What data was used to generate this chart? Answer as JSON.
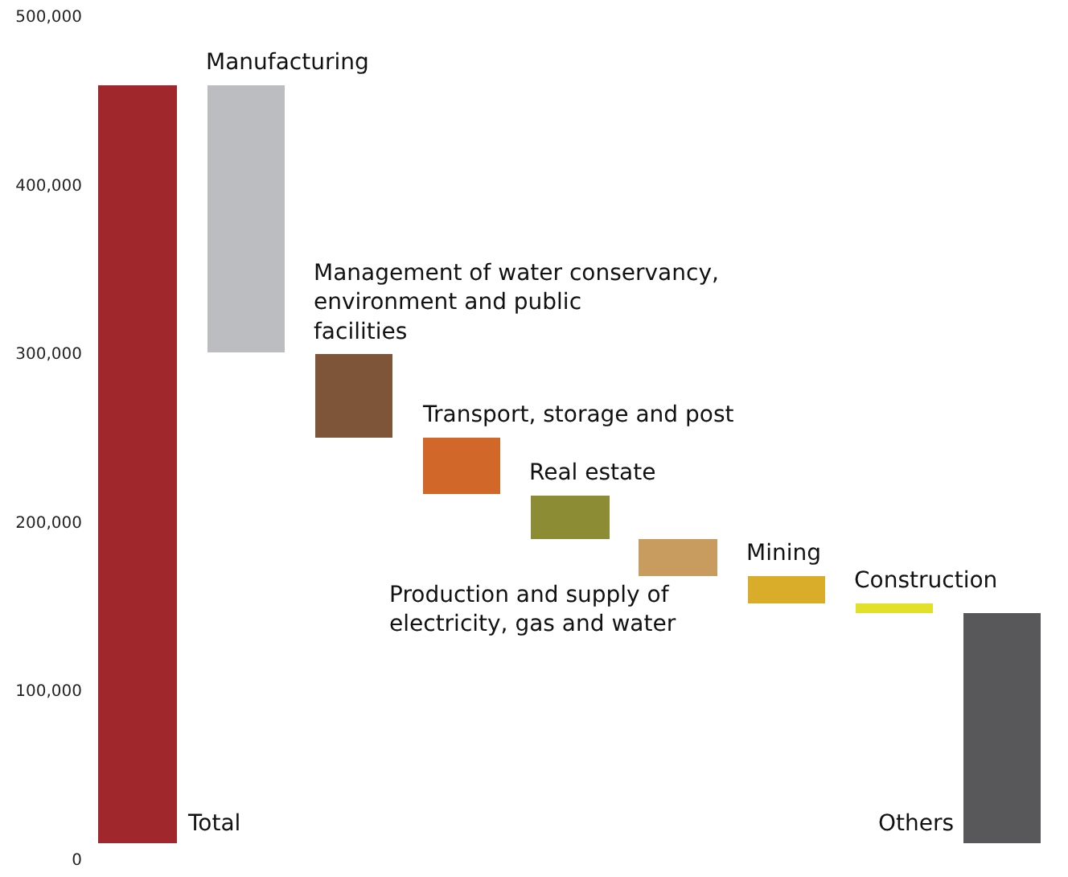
{
  "chart_data": {
    "type": "bar",
    "categories": [
      null,
      null,
      null,
      null,
      null,
      null,
      null,
      null,
      null
    ],
    "annotations": [
      "Total",
      "Manufacturing",
      "Management of water conservancy, environment and public facilities",
      "Transport, storage and post",
      "Real estate",
      "Production and supply of electricity, gas and water",
      "Mining",
      "Construction",
      "Others"
    ],
    "base": [
      10000,
      301000,
      250000,
      217000,
      190000,
      168000,
      152000,
      146000,
      10000
    ],
    "values": [
      449000,
      158000,
      50000,
      33000,
      26000,
      22000,
      16000,
      6000,
      136000
    ],
    "colors": [
      "#a0282d",
      "#bcbdc0",
      "#7f5539",
      "#d2672a",
      "#8c8c35",
      "#c79c5e",
      "#d9ac2a",
      "#e3e02a",
      "#58585a"
    ],
    "ylim": [
      0,
      500000
    ],
    "yticks": [
      0,
      {
        "value": 100000,
        "label": "100,000"
      },
      {
        "value": 200000,
        "label": "200,000"
      },
      {
        "value": 300000,
        "label": "300,000"
      },
      {
        "value": 400000,
        "label": "400,000"
      },
      {
        "value": 500000,
        "label": "500,000"
      }
    ],
    "tick_labels": "y"
  }
}
